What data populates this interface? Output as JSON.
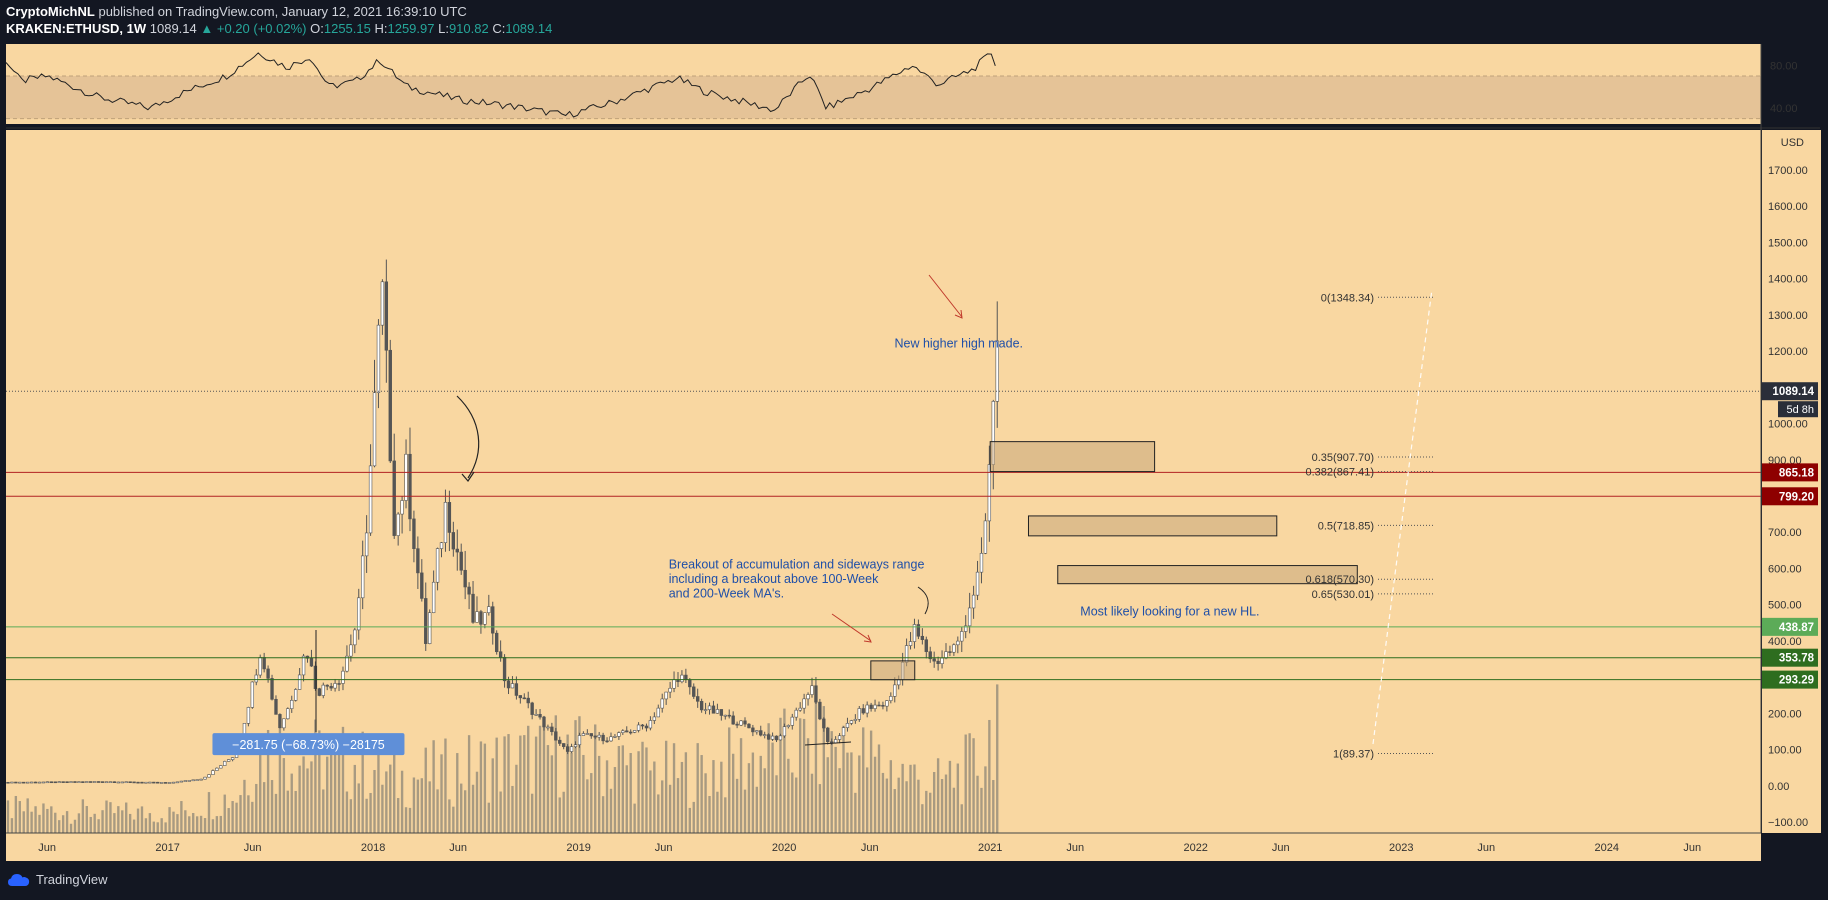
{
  "header": {
    "author": "CryptoMichNL",
    "published": "published on TradingView.com, January 12, 2021 16:39:10 UTC",
    "symbol": "KRAKEN:ETHUSD, 1W",
    "last": "1089.14",
    "change": "+0.20 (+0.02%)",
    "o_label": "O:",
    "o": "1255.15",
    "h_label": "H:",
    "h": "1259.97",
    "l_label": "L:",
    "l": "910.82",
    "c_label": "C:",
    "c": "1089.14"
  },
  "footer": {
    "brand": "TradingView"
  },
  "colors": {
    "background": "#f9d7a1",
    "frame": "#131722",
    "candle": "#555555",
    "resistance": "#b22222",
    "support": "#3d8b2f",
    "annotation_text": "#1f4fa8"
  },
  "chart_data": {
    "type": "candlestick",
    "title": "",
    "ylabel": "USD",
    "ylim": [
      -130,
      1810
    ],
    "yticks": [
      -100,
      0,
      100,
      200,
      300,
      400,
      500,
      600,
      700,
      800,
      900,
      1000,
      1100,
      1200,
      1300,
      1400,
      1500,
      1600,
      1700
    ],
    "ytick_labels": [
      "−100.00",
      "0.00",
      "100.00",
      "200.00",
      "300.00",
      "400.00",
      "500.00",
      "600.00",
      "700.00",
      "800.00",
      "900.00",
      "1000.00",
      "1100.00",
      "1200.00",
      "1300.00",
      "1400.00",
      "1500.00",
      "1600.00",
      "1700.00"
    ],
    "xlim": [
      "2016-03-20",
      "2024-10-01"
    ],
    "xticks": [
      {
        "date": "2016-06-01",
        "label": "Jun"
      },
      {
        "date": "2017-01-01",
        "label": "2017"
      },
      {
        "date": "2017-06-01",
        "label": "Jun"
      },
      {
        "date": "2018-01-01",
        "label": "2018"
      },
      {
        "date": "2018-06-01",
        "label": "Jun"
      },
      {
        "date": "2019-01-01",
        "label": "2019"
      },
      {
        "date": "2019-06-01",
        "label": "Jun"
      },
      {
        "date": "2020-01-01",
        "label": "2020"
      },
      {
        "date": "2020-06-01",
        "label": "Jun"
      },
      {
        "date": "2021-01-01",
        "label": "2021"
      },
      {
        "date": "2021-06-01",
        "label": "Jun"
      },
      {
        "date": "2022-01-01",
        "label": "2022"
      },
      {
        "date": "2022-06-01",
        "label": "Jun"
      },
      {
        "date": "2023-01-01",
        "label": "2023"
      },
      {
        "date": "2023-06-01",
        "label": "Jun"
      },
      {
        "date": "2024-01-01",
        "label": "2024"
      },
      {
        "date": "2024-06-01",
        "label": "Jun"
      }
    ],
    "price_path": [
      [
        "2016-03-20",
        10
      ],
      [
        "2016-09-01",
        12
      ],
      [
        "2017-01-01",
        9
      ],
      [
        "2017-03-01",
        20
      ],
      [
        "2017-05-01",
        90
      ],
      [
        "2017-06-12",
        380
      ],
      [
        "2017-07-15",
        160
      ],
      [
        "2017-08-01",
        220
      ],
      [
        "2017-09-01",
        380
      ],
      [
        "2017-09-20",
        260
      ],
      [
        "2017-11-01",
        300
      ],
      [
        "2017-12-01",
        460
      ],
      [
        "2017-12-20",
        780
      ],
      [
        "2018-01-13",
        1380
      ],
      [
        "2018-02-05",
        700
      ],
      [
        "2018-02-25",
        870
      ],
      [
        "2018-04-01",
        400
      ],
      [
        "2018-05-07",
        780
      ],
      [
        "2018-06-25",
        450
      ],
      [
        "2018-07-25",
        470
      ],
      [
        "2018-08-20",
        290
      ],
      [
        "2018-10-01",
        220
      ],
      [
        "2018-12-10",
        90
      ],
      [
        "2019-01-01",
        140
      ],
      [
        "2019-02-20",
        130
      ],
      [
        "2019-05-01",
        170
      ],
      [
        "2019-06-25",
        310
      ],
      [
        "2019-08-01",
        220
      ],
      [
        "2019-10-01",
        180
      ],
      [
        "2019-12-15",
        125
      ],
      [
        "2020-02-15",
        270
      ],
      [
        "2020-03-16",
        110
      ],
      [
        "2020-05-15",
        210
      ],
      [
        "2020-07-01",
        230
      ],
      [
        "2020-08-15",
        430
      ],
      [
        "2020-09-20",
        340
      ],
      [
        "2020-11-01",
        390
      ],
      [
        "2020-12-15",
        620
      ],
      [
        "2021-01-04",
        1050
      ],
      [
        "2021-01-10",
        1255
      ],
      [
        "2021-01-11",
        1089.14
      ]
    ],
    "volume_path": [
      [
        "2016-03-20",
        25
      ],
      [
        "2017-01-01",
        20
      ],
      [
        "2017-05-01",
        40
      ],
      [
        "2017-06-12",
        90
      ],
      [
        "2017-12-20",
        70
      ],
      [
        "2018-02-05",
        55
      ],
      [
        "2018-11-25",
        85
      ],
      [
        "2019-06-25",
        60
      ],
      [
        "2020-03-16",
        95
      ],
      [
        "2020-09-20",
        50
      ],
      [
        "2020-12-15",
        75
      ],
      [
        "2021-01-10",
        140
      ]
    ],
    "rsi": {
      "ylim": [
        25,
        100
      ],
      "yticks": [
        40,
        80
      ],
      "ytick_labels": [
        "40.00",
        "80.00"
      ],
      "band": [
        30,
        70
      ],
      "path": [
        [
          "2016-03-20",
          85
        ],
        [
          "2016-04-15",
          65
        ],
        [
          "2016-06-01",
          70
        ],
        [
          "2016-09-01",
          50
        ],
        [
          "2016-12-01",
          40
        ],
        [
          "2017-02-01",
          55
        ],
        [
          "2017-04-15",
          70
        ],
        [
          "2017-06-12",
          92
        ],
        [
          "2017-08-01",
          78
        ],
        [
          "2017-09-10",
          88
        ],
        [
          "2017-10-15",
          60
        ],
        [
          "2017-12-01",
          65
        ],
        [
          "2018-01-13",
          85
        ],
        [
          "2018-03-01",
          60
        ],
        [
          "2018-06-01",
          48
        ],
        [
          "2018-09-01",
          42
        ],
        [
          "2018-12-10",
          33
        ],
        [
          "2019-03-01",
          45
        ],
        [
          "2019-06-25",
          68
        ],
        [
          "2019-08-15",
          55
        ],
        [
          "2019-12-15",
          38
        ],
        [
          "2020-02-15",
          72
        ],
        [
          "2020-03-16",
          40
        ],
        [
          "2020-06-01",
          58
        ],
        [
          "2020-08-15",
          80
        ],
        [
          "2020-10-01",
          62
        ],
        [
          "2020-12-01",
          76
        ],
        [
          "2021-01-04",
          92
        ],
        [
          "2021-01-11",
          80
        ]
      ]
    },
    "horizontal_levels": [
      {
        "price": 865.18,
        "label": "865.18",
        "color": "#b22222"
      },
      {
        "price": 799.2,
        "label": "799.20",
        "color": "#b22222"
      },
      {
        "price": 438.87,
        "label": "438.87",
        "color": "#5cab58"
      },
      {
        "price": 353.78,
        "label": "353.78",
        "color": "#2e6d1f"
      },
      {
        "price": 293.29,
        "label": "293.29",
        "color": "#2e6d1f"
      }
    ],
    "current_price": {
      "price": 1089.14,
      "label": "1089.14",
      "countdown": "5d 8h"
    },
    "fibonacci": [
      {
        "level": "0",
        "price": 1348.34,
        "label": "0(1348.34)"
      },
      {
        "level": "0.35",
        "price": 907.7,
        "label": "0.35(907.70)"
      },
      {
        "level": "0.382",
        "price": 867.41,
        "label": "0.382(867.41)"
      },
      {
        "level": "0.5",
        "price": 718.85,
        "label": "0.5(718.85)"
      },
      {
        "level": "0.618",
        "price": 570.3,
        "label": "0.618(570.30)"
      },
      {
        "level": "0.65",
        "price": 530.01,
        "label": "0.65(530.01)"
      },
      {
        "level": "1",
        "price": 89.37,
        "label": "1(89.37)"
      }
    ],
    "zones": [
      {
        "x0": "2021-01-01",
        "x1": "2021-10-20",
        "y0": 867.41,
        "y1": 950
      },
      {
        "x0": "2021-03-10",
        "x1": "2022-05-25",
        "y0": 690,
        "y1": 745
      },
      {
        "x0": "2021-05-01",
        "x1": "2022-10-15",
        "y0": 558,
        "y1": 608
      },
      {
        "x0": "2020-06-03",
        "x1": "2020-08-20",
        "y0": 293,
        "y1": 345
      }
    ],
    "annotations": [
      {
        "text": "New higher high made.",
        "date": "2020-07-15",
        "price": 1210
      },
      {
        "text": "Breakout of accumulation and sideways range",
        "date": "2019-06-10",
        "price": 600
      },
      {
        "text": "including a breakout above 100-Week",
        "date": "2019-06-10",
        "price": 560
      },
      {
        "text": "and 200-Week MA's.",
        "date": "2019-06-10",
        "price": 520
      },
      {
        "text": "Most likely looking for a new HL.",
        "date": "2021-06-10",
        "price": 470
      },
      {
        "text": "−281.75 (−68.73%) −28175",
        "date": "2017-04-12",
        "price": 85
      }
    ]
  }
}
